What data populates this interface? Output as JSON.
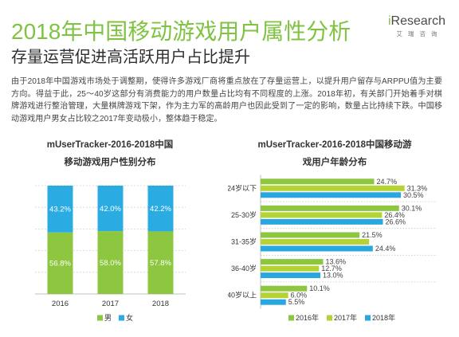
{
  "header": {
    "title": "2018年中国移动游戏用户属性分析",
    "subtitle": "存量运营促进高活跃用户占比提升"
  },
  "logo": {
    "brand": "iResearch",
    "brand_cn": "艾瑞咨询"
  },
  "intro": {
    "lines": [
      "由于2018年中国游戏市场处于调整期，使得许多游戏厂商将重点放在了存量运营上，以提升用户留存与ARPPU值为主要",
      "方向。得益于此，25～40岁这部分有消费能力的用户数量占比均有不同程度的上涨。2018年初，有关部门开始着手对棋",
      "牌游戏进行整治管理，大量棋牌游戏下架，作为主力军的高龄用户也因此受到了一定的影响，数量占比持续下跌。中国移",
      "动游戏用户男女占比较之2017年变动极小，整体趋于稳定。"
    ]
  },
  "colors": {
    "title": "#80c342"
  },
  "chart_data": [
    {
      "type": "bar",
      "orientation": "vertical",
      "stacked": true,
      "title_lines": [
        "mUserTracker-2016-2018中国",
        "移动游戏用户性别分布"
      ],
      "categories": [
        "2016",
        "2017",
        "2018"
      ],
      "series": [
        {
          "name": "男",
          "color": "#8dc63f",
          "values": [
            56.8,
            58.0,
            57.8
          ],
          "labels": [
            "56.8%",
            "58.0%",
            "57.8%"
          ]
        },
        {
          "name": "女",
          "color": "#2aace2",
          "values": [
            43.2,
            42.0,
            42.2
          ],
          "labels": [
            "43.2%",
            "42.0%",
            "42.2%"
          ]
        }
      ],
      "ylim": [
        0,
        100
      ],
      "grid": true,
      "legend": "bottom"
    },
    {
      "type": "bar",
      "orientation": "horizontal",
      "title_lines": [
        "mUserTracker-2016-2018中国移动游",
        "戏用户年龄分布"
      ],
      "categories": [
        "24岁以下",
        "25-30岁",
        "31-35岁",
        "36-40岁",
        "40岁以上"
      ],
      "series": [
        {
          "name": "2016年",
          "color": "#8dc63f",
          "values": [
            24.7,
            30.1,
            21.5,
            13.6,
            10.1
          ],
          "labels": [
            "24.7%",
            "30.1%",
            "21.5%",
            "13.6%",
            "10.1%"
          ]
        },
        {
          "name": "2017年",
          "color": "#b5d334",
          "values": [
            31.3,
            26.4,
            23.6,
            12.7,
            6.0
          ],
          "labels": [
            "31.3%",
            "26.4%",
            "",
            "12.7%",
            "6.0%"
          ]
        },
        {
          "name": "2018年",
          "color": "#29a8e0",
          "values": [
            30.5,
            26.6,
            24.4,
            13.0,
            5.5
          ],
          "labels": [
            "30.5%",
            "26.6%",
            "24.4%",
            "13.0%",
            "5.5%"
          ]
        }
      ],
      "xlim": [
        0,
        35
      ],
      "grid": true,
      "legend": "bottom"
    }
  ]
}
